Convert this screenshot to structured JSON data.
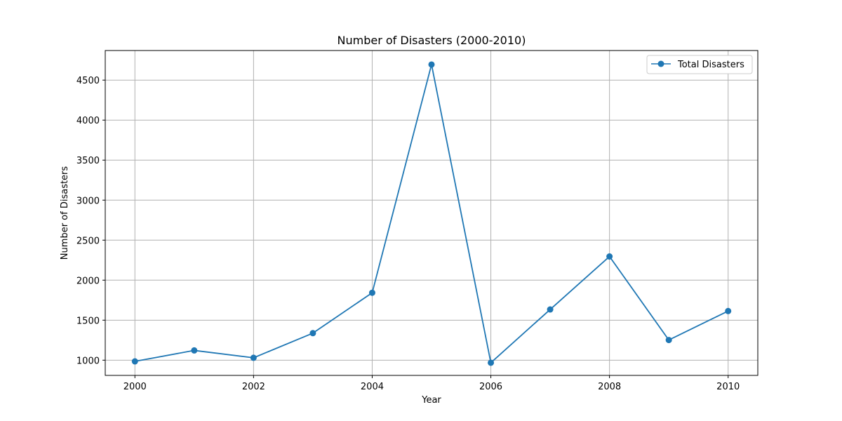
{
  "chart_data": {
    "type": "line",
    "title": "Number of Disasters (2000-2010)",
    "xlabel": "Year",
    "ylabel": "Number of Disasters",
    "x": [
      2000,
      2001,
      2002,
      2003,
      2004,
      2005,
      2006,
      2007,
      2008,
      2009,
      2010
    ],
    "series": [
      {
        "name": "Total Disasters",
        "color": "#1f77b4",
        "marker": "circle",
        "values": [
          985,
          1122,
          1030,
          1338,
          1843,
          4695,
          968,
          1634,
          2296,
          1252,
          1614
        ]
      }
    ],
    "xlim": [
      1999.5,
      2010.5
    ],
    "ylim": [
      810,
      4870
    ],
    "xticks": [
      "2000",
      "2002",
      "2004",
      "2006",
      "2008",
      "2010"
    ],
    "yticks": [
      "1000",
      "1500",
      "2000",
      "2500",
      "3000",
      "3500",
      "4000",
      "4500"
    ],
    "grid": true,
    "legend_position": "upper right"
  }
}
